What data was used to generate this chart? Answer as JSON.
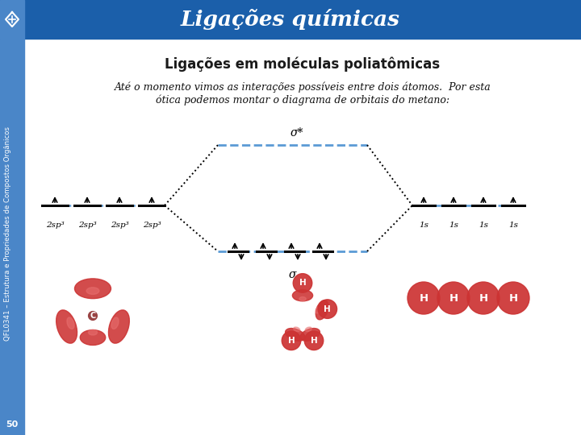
{
  "title": "Ligações químicas",
  "subtitle": "Ligações em moléculas poliatômicas",
  "body_text_line1": "Até o momento vimos as interações possíveis entre dois átomos.  Por esta",
  "body_text_line2": "ótica podemos montar o diagrama de orbitais do metano:",
  "sidebar_text": "QFL0341 – Estrutura e Propriedades de Compostos Orgânicos",
  "page_number": "50",
  "header_bg": "#1b5faa",
  "sidebar_bg": "#4a86c8",
  "content_bg": "#e8e8e8",
  "sp3_labels": [
    "2sp³",
    "2sp³",
    "2sp³",
    "2sp³"
  ],
  "s1_labels": [
    "1s",
    "1s",
    "1s",
    "1s"
  ],
  "sigma_star_label": "σ*",
  "sigma_label": "σ",
  "dash_color": "#5b9bd5",
  "line_color": "#000000",
  "lobe_color": "#cc3333",
  "lobe_highlight": "#e87070",
  "H_color": "#cc3333"
}
